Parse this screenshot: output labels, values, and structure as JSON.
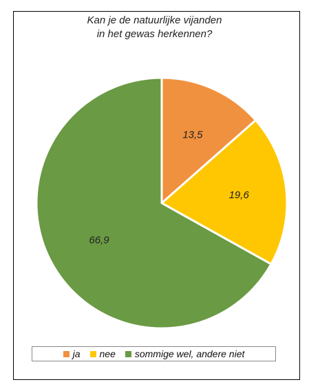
{
  "chart_data": {
    "type": "pie",
    "title_lines": [
      "Kan je de natuurlijke vijanden",
      "in het gewas  herkennen?"
    ],
    "slices": [
      {
        "label": "ja",
        "value": 13.5,
        "display": "13,5",
        "color": "#F0913F"
      },
      {
        "label": "nee",
        "value": 19.6,
        "display": "19,6",
        "color": "#FFC701"
      },
      {
        "label": "sommige wel, andere niet",
        "value": 66.9,
        "display": "66,9",
        "color": "#6A9A44"
      }
    ],
    "legend_position": "bottom"
  }
}
